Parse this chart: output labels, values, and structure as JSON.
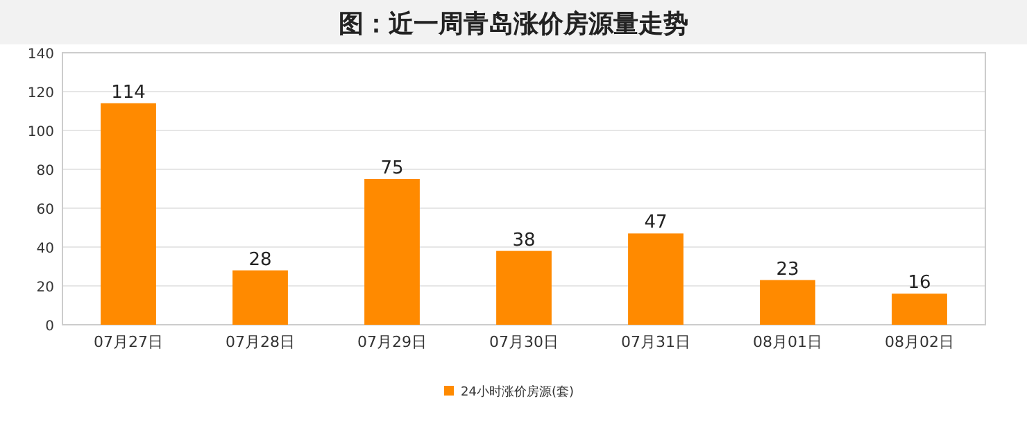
{
  "chart_data": {
    "type": "bar",
    "title": "图：近一周青岛涨价房源量走势",
    "categories": [
      "07月27日",
      "07月28日",
      "07月29日",
      "07月30日",
      "07月31日",
      "08月01日",
      "08月02日"
    ],
    "series": [
      {
        "name": "24小时涨价房源(套)",
        "color": "#ff8a00",
        "values": [
          114,
          28,
          75,
          38,
          47,
          23,
          16
        ]
      }
    ],
    "ylim": [
      0,
      140
    ],
    "yticks": [
      0,
      20,
      40,
      60,
      80,
      100,
      120,
      140
    ],
    "grid": "y",
    "legend": "bottom",
    "data_labels": true
  }
}
